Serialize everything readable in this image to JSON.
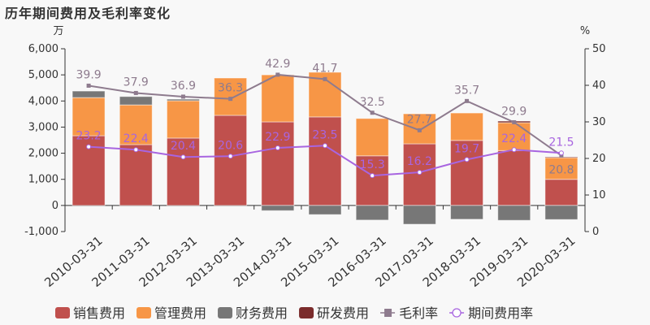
{
  "title": "历年期间费用及毛利率变化",
  "chart_data": {
    "type": "bar",
    "title": "历年期间费用及毛利率变化",
    "categories": [
      "2010-03-31",
      "2011-03-31",
      "2012-03-31",
      "2013-03-31",
      "2014-03-31",
      "2015-03-31",
      "2016-03-31",
      "2017-03-31",
      "2018-03-31",
      "2019-03-31",
      "2020-03-31"
    ],
    "left_axis": {
      "unit": "万",
      "ylim": [
        -1000,
        6000
      ],
      "ticks": [
        "-1,000",
        "0",
        "1,000",
        "2,000",
        "3,000",
        "4,000",
        "5,000",
        "6,000"
      ]
    },
    "right_axis": {
      "unit": "%",
      "ylim": [
        0,
        50
      ],
      "ticks": [
        "0",
        "10",
        "20",
        "30",
        "40",
        "50"
      ]
    },
    "legend_position": "bottom",
    "grid": false,
    "series": [
      {
        "name": "销售费用",
        "kind": "bar",
        "color": "#c0504d",
        "values": [
          2670,
          2330,
          2580,
          3450,
          3200,
          3390,
          1900,
          2360,
          2490,
          2100,
          1000
        ]
      },
      {
        "name": "管理费用",
        "kind": "bar",
        "color": "#f79646",
        "values": [
          1460,
          1520,
          1430,
          1430,
          1800,
          1710,
          1430,
          1150,
          1050,
          1070,
          830
        ]
      },
      {
        "name": "财务费用",
        "kind": "bar",
        "color": "#777777",
        "values": [
          250,
          320,
          60,
          0,
          -200,
          -350,
          -560,
          -720,
          -530,
          -570,
          -540
        ]
      },
      {
        "name": "研发费用",
        "kind": "bar",
        "color": "#7b2c2c",
        "values": [
          0,
          0,
          0,
          0,
          0,
          0,
          0,
          0,
          0,
          60,
          30
        ]
      },
      {
        "name": "毛利率",
        "kind": "line",
        "axis": "right",
        "color": "#8e7b8e",
        "values": [
          39.9,
          37.9,
          36.9,
          36.3,
          42.9,
          41.7,
          32.5,
          27.7,
          35.7,
          29.9,
          20.8
        ],
        "labels": [
          "39.9",
          "37.9",
          "36.9",
          "36.3",
          "42.9",
          "41.7",
          "32.5",
          "27.7",
          "35.7",
          "29.9",
          "20.8"
        ]
      },
      {
        "name": "期间费用率",
        "kind": "line",
        "axis": "right",
        "color": "#a865e0",
        "values": [
          23.2,
          22.4,
          20.4,
          20.6,
          22.9,
          23.5,
          15.3,
          16.2,
          19.7,
          22.4,
          21.5
        ],
        "labels": [
          "23.2",
          "22.4",
          "20.4",
          "20.6",
          "22.9",
          "23.5",
          "15.3",
          "16.2",
          "19.7",
          "22.4",
          "21.5"
        ]
      }
    ]
  }
}
